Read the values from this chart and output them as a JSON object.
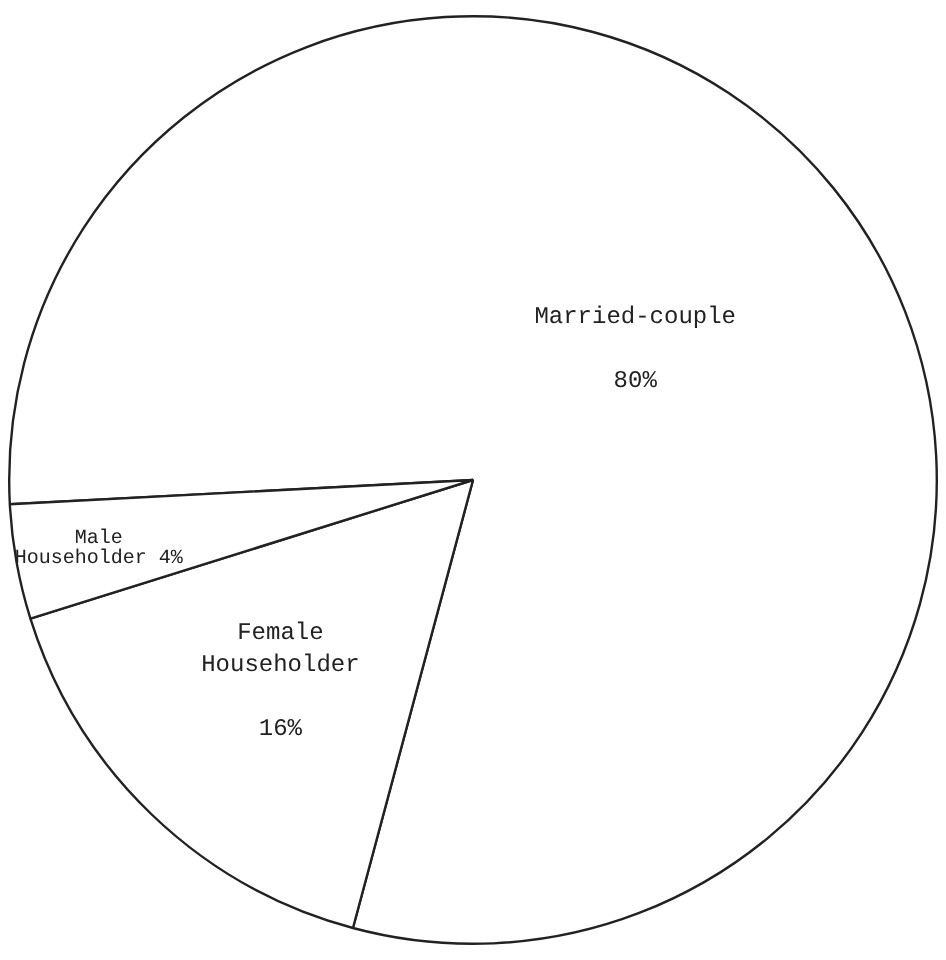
{
  "chart_data": {
    "type": "pie",
    "categories": [
      "Married-couple",
      "Female Householder",
      "Male Householder"
    ],
    "values": [
      80,
      16,
      4
    ],
    "colors": [
      "#ffffff",
      "#ffffff",
      "#ffffff"
    ],
    "value_labels": [
      "80%",
      "16%",
      "4%"
    ],
    "legend": false
  }
}
